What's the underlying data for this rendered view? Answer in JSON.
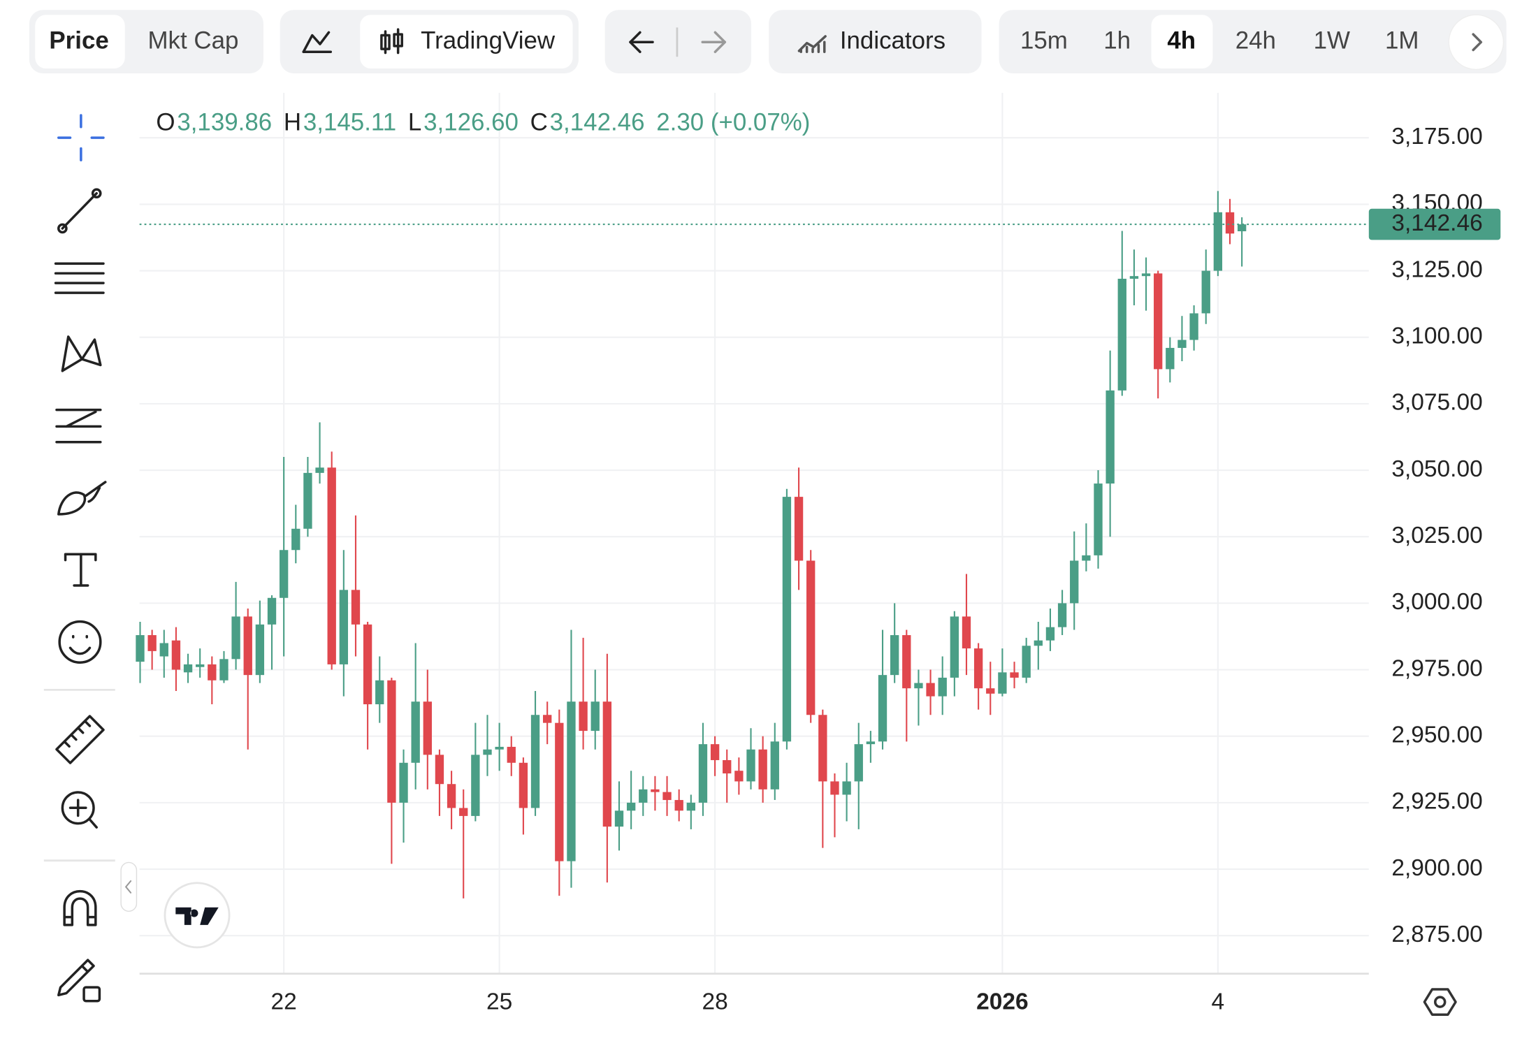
{
  "toolbar": {
    "price": "Price",
    "mkt_cap": "Mkt Cap",
    "tradingview": "TradingView",
    "indicators": "Indicators",
    "intervals": [
      "15m",
      "1h",
      "4h",
      "24h",
      "1W",
      "1M"
    ]
  },
  "legend": {
    "o_label": "O",
    "o": "3,139.86",
    "h_label": "H",
    "h": "3,145.11",
    "l_label": "L",
    "l": "3,126.60",
    "c_label": "C",
    "c": "3,142.46",
    "change": "2.30 (+0.07%)"
  },
  "last_price_label": "3,142.46",
  "chart_data": {
    "type": "candlestick",
    "up_color": "#4a9e86",
    "down_color": "#e0474d",
    "grid": true,
    "categories": [
      null,
      null,
      null,
      null,
      null,
      null,
      null,
      null,
      null,
      null,
      null,
      null,
      null,
      null,
      null,
      null,
      null,
      null,
      null,
      null,
      null,
      null,
      null,
      null,
      null,
      null,
      null,
      null,
      null,
      null,
      null,
      null,
      null,
      null,
      null,
      null,
      null,
      null,
      null,
      null,
      null,
      null,
      null,
      null,
      null,
      null,
      null,
      null,
      null,
      null,
      null,
      null,
      null,
      null,
      null,
      null,
      null,
      null,
      null,
      null,
      null,
      null,
      null,
      null,
      null,
      null,
      null,
      null,
      null,
      null,
      null,
      null,
      null,
      null,
      null,
      null,
      null,
      null,
      null,
      null,
      null,
      null,
      null,
      null,
      null,
      null,
      null,
      null,
      null,
      null,
      null,
      null,
      null
    ],
    "open": [
      2978,
      2988,
      2980,
      2986,
      2974,
      2976,
      2977,
      2971,
      2979,
      2995,
      2973,
      2992,
      3002,
      3020,
      3028,
      3049,
      3051,
      2977,
      3005,
      2992,
      2962,
      2971,
      2925,
      2940,
      2963,
      2943,
      2932,
      2923,
      2920,
      2943,
      2945,
      2946,
      2940,
      2923,
      2958,
      2955,
      2903,
      2963,
      2952,
      2963,
      2916,
      2922,
      2925,
      2930,
      2929,
      2926,
      2922,
      2925,
      2947,
      2941,
      2937,
      2933,
      2945,
      2930,
      2948,
      3040,
      3016,
      2958,
      2933,
      2928,
      2933,
      2947,
      2948,
      2973,
      2988,
      2968,
      2970,
      2965,
      2972,
      2995,
      2983,
      2968,
      2966,
      2974,
      2972,
      2984,
      2986,
      2991,
      3000,
      3016,
      3018,
      3045,
      3080,
      3122,
      3123,
      3124,
      3088,
      3096,
      3099,
      3109,
      3125,
      3147,
      3139.86
    ],
    "high": [
      2993,
      2990,
      2990,
      2991,
      2981,
      2983,
      2980,
      2982,
      3008,
      2998,
      3001,
      3003,
      3055,
      3037,
      3055,
      3068,
      3057,
      3020,
      3033,
      2993,
      2980,
      2972,
      2945,
      2985,
      2975,
      2945,
      2937,
      2930,
      2955,
      2958,
      2955,
      2950,
      2942,
      2967,
      2963,
      2960,
      2990,
      2987,
      2975,
      2981,
      2933,
      2937,
      2935,
      2935,
      2935,
      2930,
      2928,
      2955,
      2950,
      2945,
      2942,
      2953,
      2950,
      2955,
      3043,
      3051,
      3020,
      2960,
      2936,
      2940,
      2955,
      2952,
      2990,
      3000,
      2990,
      2975,
      2975,
      2980,
      2997,
      3011,
      2985,
      2978,
      2983,
      2978,
      2987,
      2993,
      2998,
      3005,
      3027,
      3030,
      3050,
      3095,
      3140,
      3133,
      3130,
      3125,
      3100,
      3108,
      3112,
      3133,
      3155,
      3152,
      3145.11
    ],
    "low": [
      2970,
      2975,
      2972,
      2967,
      2970,
      2972,
      2962,
      2970,
      2975,
      2945,
      2970,
      2975,
      2980,
      3015,
      3025,
      3045,
      2975,
      2965,
      2980,
      2945,
      2955,
      2902,
      2910,
      2930,
      2930,
      2920,
      2915,
      2889,
      2918,
      2935,
      2937,
      2935,
      2913,
      2920,
      2947,
      2890,
      2893,
      2945,
      2945,
      2895,
      2907,
      2915,
      2920,
      2922,
      2920,
      2918,
      2915,
      2920,
      2935,
      2925,
      2928,
      2930,
      2925,
      2926,
      2945,
      3005,
      2955,
      2908,
      2912,
      2918,
      2915,
      2940,
      2945,
      2970,
      2948,
      2954,
      2958,
      2958,
      2965,
      2973,
      2960,
      2958,
      2965,
      2968,
      2970,
      2975,
      2982,
      2988,
      2990,
      3012,
      3013,
      3025,
      3078,
      3112,
      3110,
      3077,
      3083,
      3091,
      3095,
      3105,
      3123,
      3135,
      3126.6
    ],
    "close": [
      2988,
      2982,
      2985,
      2975,
      2977,
      2977,
      2971,
      2979,
      2995,
      2973,
      2992,
      3002,
      3020,
      3028,
      3049,
      3051,
      2977,
      3005,
      2992,
      2962,
      2971,
      2925,
      2940,
      2963,
      2943,
      2932,
      2923,
      2920,
      2943,
      2945,
      2946,
      2940,
      2923,
      2958,
      2955,
      2903,
      2963,
      2952,
      2963,
      2916,
      2922,
      2925,
      2930,
      2929,
      2926,
      2922,
      2925,
      2947,
      2941,
      2936,
      2933,
      2945,
      2930,
      2948,
      3040,
      3016,
      2958,
      2933,
      2928,
      2933,
      2947,
      2948,
      2973,
      2988,
      2968,
      2970,
      2965,
      2972,
      2995,
      2983,
      2968,
      2966,
      2974,
      2972,
      2984,
      2986,
      2991,
      3000,
      3016,
      3018,
      3045,
      3080,
      3122,
      3123,
      3124,
      3088,
      3096,
      3099,
      3109,
      3125,
      3147,
      3139,
      3142.46
    ],
    "xlim": [
      -0.05,
      102.6
    ],
    "xticks": [
      {
        "value": 12,
        "label": "22"
      },
      {
        "value": 30,
        "label": "25"
      },
      {
        "value": 48,
        "label": "28"
      },
      {
        "value": 72,
        "label": "2026"
      },
      {
        "value": 90,
        "label": "4"
      }
    ],
    "ylim": [
      2860.7,
      3191.9
    ],
    "yticks": [
      {
        "value": 2875,
        "label": "2,875.00"
      },
      {
        "value": 2900,
        "label": "2,900.00"
      },
      {
        "value": 2925,
        "label": "2,925.00"
      },
      {
        "value": 2950,
        "label": "2,950.00"
      },
      {
        "value": 2975,
        "label": "2,975.00"
      },
      {
        "value": 3000,
        "label": "3,000.00"
      },
      {
        "value": 3025,
        "label": "3,025.00"
      },
      {
        "value": 3050,
        "label": "3,050.00"
      },
      {
        "value": 3075,
        "label": "3,075.00"
      },
      {
        "value": 3100,
        "label": "3,100.00"
      },
      {
        "value": 3125,
        "label": "3,125.00"
      },
      {
        "value": 3150,
        "label": "3,150.00"
      },
      {
        "value": 3175,
        "label": "3,175.00"
      }
    ]
  }
}
